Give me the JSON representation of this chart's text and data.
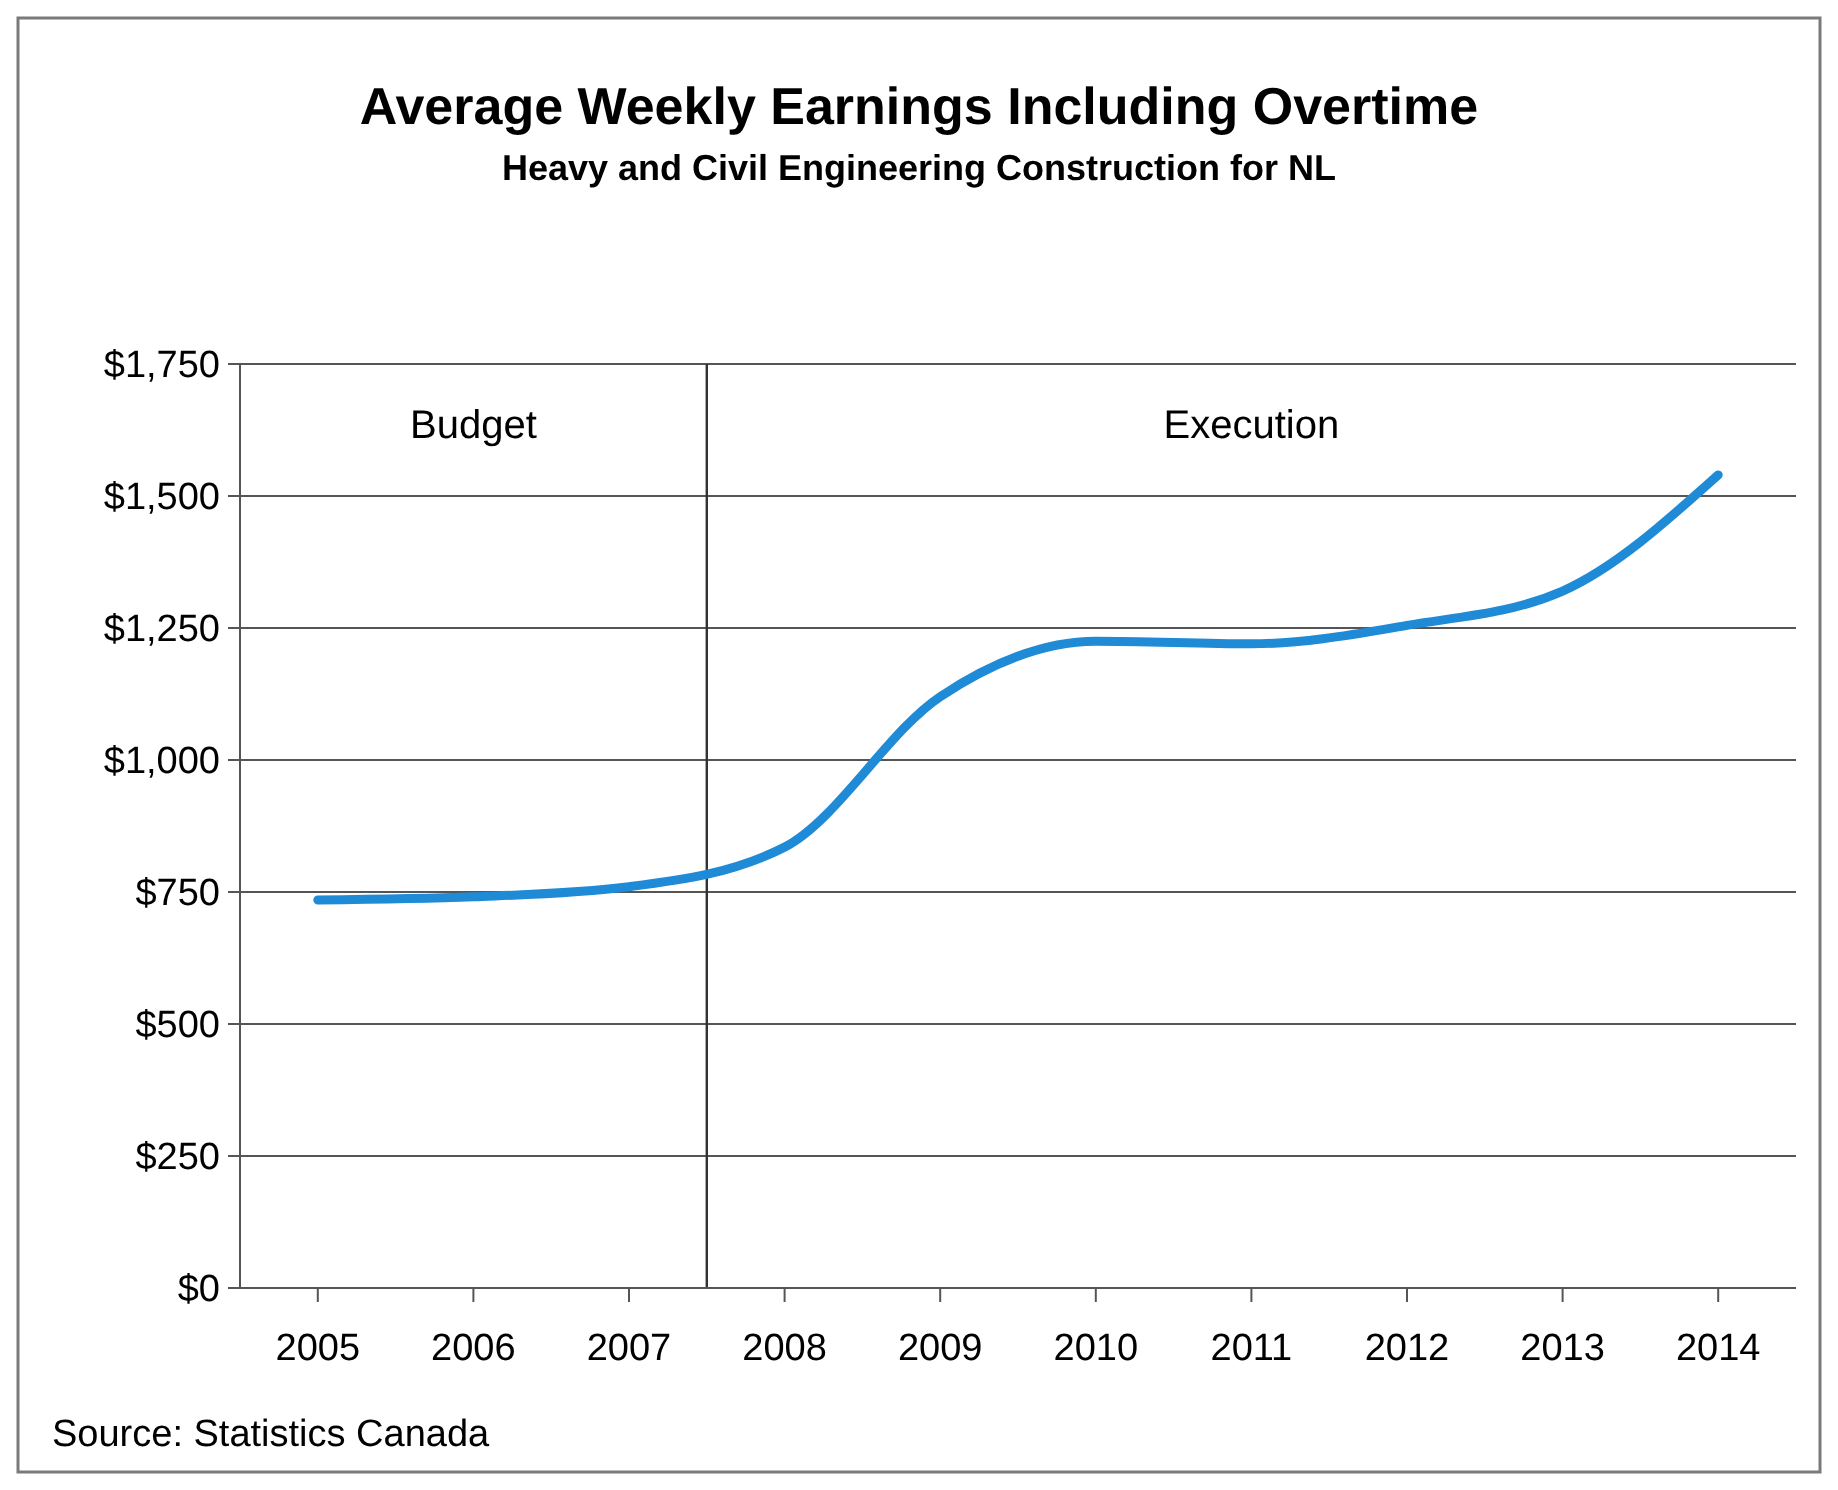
{
  "chart_data": {
    "type": "line",
    "title": "Average Weekly Earnings Including Overtime",
    "subtitle": "Heavy and Civil Engineering Construction for NL",
    "x": [
      2005,
      2006,
      2007,
      2008,
      2009,
      2010,
      2011,
      2012,
      2013,
      2014
    ],
    "series": [
      {
        "color": "#1f8ad6",
        "values": [
          735,
          741,
          760,
          835,
          1120,
          1225,
          1220,
          1255,
          1320,
          1540
        ]
      }
    ],
    "xlim": [
      2004.5,
      2014.5
    ],
    "xticks": [
      2005,
      2006,
      2007,
      2008,
      2009,
      2010,
      2011,
      2012,
      2013,
      2014
    ],
    "ylim": [
      0,
      1750
    ],
    "yticks": [
      {
        "value": 0,
        "label": "$0"
      },
      {
        "value": 250,
        "label": "$250"
      },
      {
        "value": 500,
        "label": "$500"
      },
      {
        "value": 750,
        "label": "$750"
      },
      {
        "value": 1000,
        "label": "$1,000"
      },
      {
        "value": 1250,
        "label": "$1,250"
      },
      {
        "value": 1500,
        "label": "$1,500"
      },
      {
        "value": 1750,
        "label": "$1,750"
      }
    ],
    "grid": "y",
    "marker": "none",
    "line_style": "solid",
    "ref_lines": [
      {
        "axis": "x",
        "value": 2007.5,
        "color": "#333333"
      }
    ],
    "annotations": [
      "Budget",
      "Execution",
      "Source: Statistics Canada"
    ]
  }
}
